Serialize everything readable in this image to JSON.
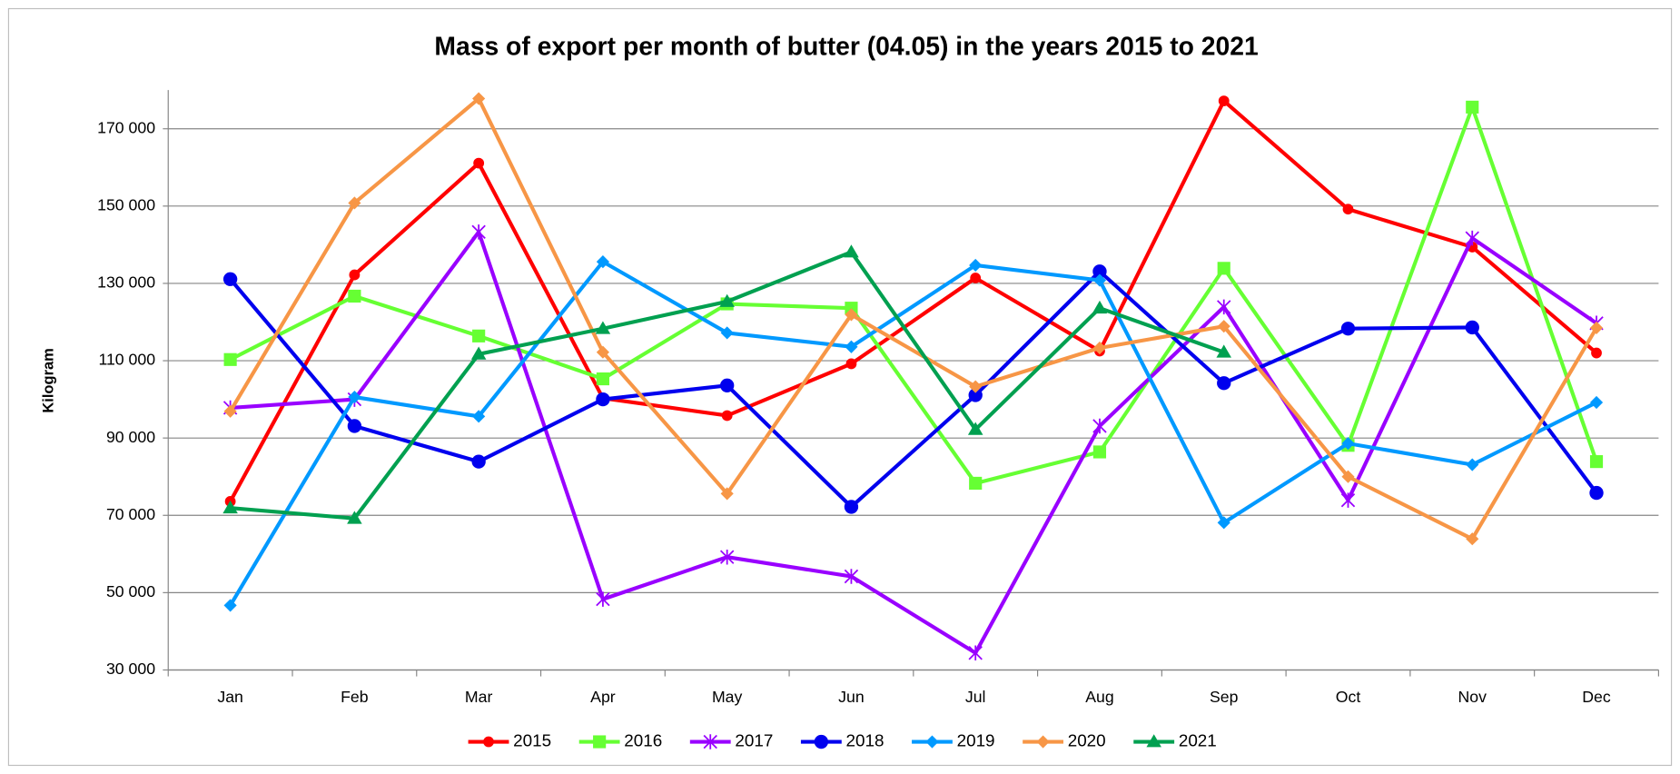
{
  "chart_data": {
    "type": "line",
    "title": "Mass of export per month of butter (04.05) in the years 2015 to 2021",
    "y_label": "Kilogram",
    "categories": [
      "Jan",
      "Feb",
      "Mar",
      "Apr",
      "May",
      "Jun",
      "Jul",
      "Aug",
      "Sep",
      "Oct",
      "Nov",
      "Dec"
    ],
    "ylim": [
      30000,
      180000
    ],
    "yticks": [
      {
        "value": 30000,
        "label": "30 000"
      },
      {
        "value": 50000,
        "label": "50 000"
      },
      {
        "value": 70000,
        "label": "70 000"
      },
      {
        "value": 90000,
        "label": "90 000"
      },
      {
        "value": 110000,
        "label": "110 000"
      },
      {
        "value": 130000,
        "label": "130 000"
      },
      {
        "value": 150000,
        "label": "150 000"
      },
      {
        "value": 170000,
        "label": "170 000"
      }
    ],
    "grid": true,
    "legend": "bottom",
    "series": [
      {
        "name": "2015",
        "color": "#ff0000",
        "marker": "circle",
        "values": [
          73600,
          132200,
          161100,
          100300,
          95800,
          109200,
          131400,
          112500,
          177200,
          149200,
          139400,
          112000
        ]
      },
      {
        "name": "2016",
        "color": "#66ff33",
        "marker": "square",
        "values": [
          110300,
          126700,
          116400,
          105300,
          124700,
          123600,
          78300,
          86400,
          133900,
          88100,
          175600,
          83900
        ]
      },
      {
        "name": "2017",
        "color": "#9900ff",
        "marker": "star",
        "values": [
          97800,
          100000,
          143300,
          48300,
          59200,
          54200,
          34400,
          93100,
          123900,
          73900,
          141700,
          119700
        ]
      },
      {
        "name": "2018",
        "color": "#0000ee",
        "marker": "bigcircle",
        "values": [
          131100,
          93100,
          83900,
          100000,
          103600,
          72200,
          101100,
          133100,
          104200,
          118300,
          118600,
          75800
        ]
      },
      {
        "name": "2019",
        "color": "#0099ff",
        "marker": "diamond",
        "values": [
          46700,
          100600,
          95600,
          135600,
          117200,
          113600,
          134700,
          130800,
          68100,
          88600,
          83100,
          99200
        ]
      },
      {
        "name": "2020",
        "color": "#f79646",
        "marker": "diamond",
        "values": [
          96900,
          150800,
          177800,
          112200,
          75600,
          121900,
          103300,
          113300,
          118900,
          80000,
          63900,
          118500
        ]
      },
      {
        "name": "2021",
        "color": "#00a050",
        "marker": "triangle",
        "values": [
          71900,
          69200,
          111700,
          118300,
          125300,
          138100,
          92200,
          123600,
          112200,
          null,
          null,
          null
        ]
      }
    ]
  }
}
